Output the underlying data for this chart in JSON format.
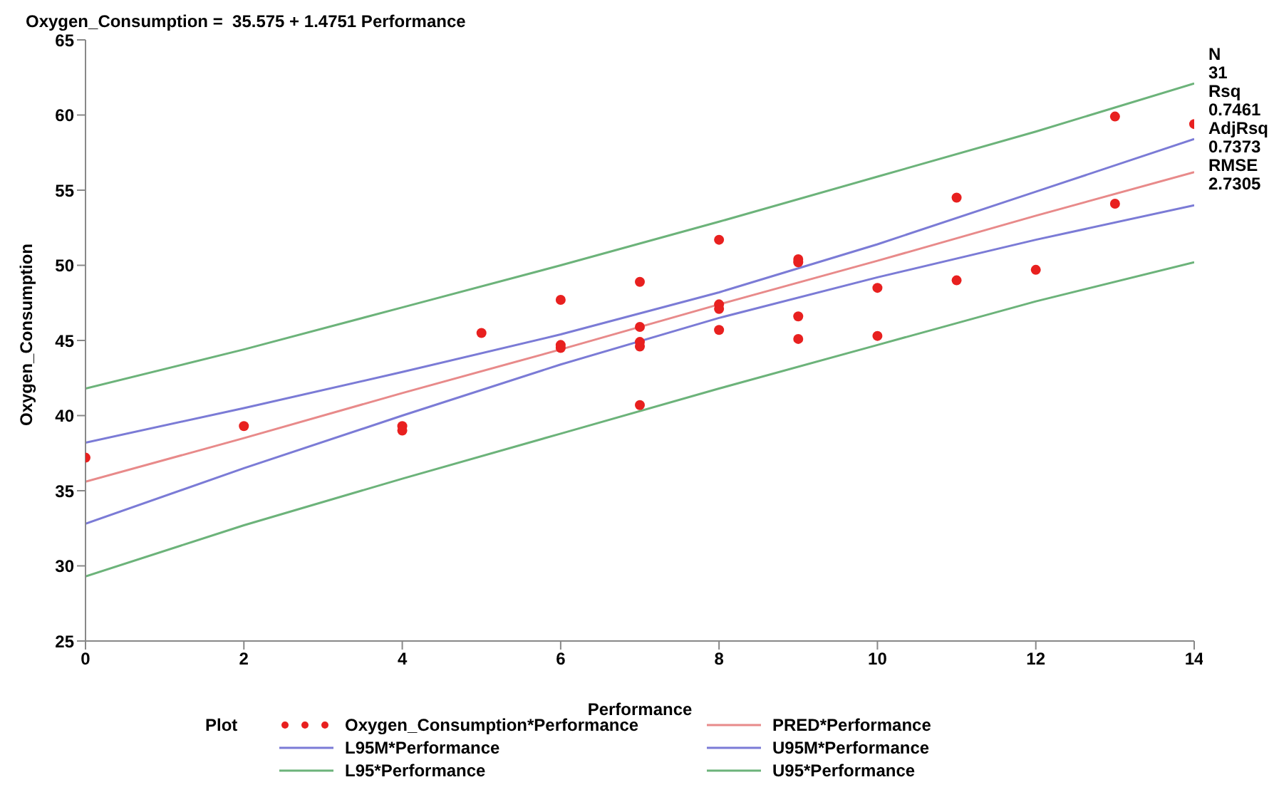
{
  "chart_data": {
    "type": "scatter",
    "title": "Oxygen_Consumption =  35.575 + 1.4751 Performance",
    "xlabel": "Performance",
    "ylabel": "Oxygen_Consumption",
    "legend_title": "Plot",
    "xlim": [
      0,
      14
    ],
    "xticks": [
      0,
      2,
      4,
      6,
      8,
      10,
      12,
      14
    ],
    "ylim": [
      25,
      65
    ],
    "yticks": [
      25,
      30,
      35,
      40,
      45,
      50,
      55,
      60,
      65
    ],
    "grid": false,
    "legend": "bottom",
    "annotations": [
      "N",
      "31",
      "Rsq",
      "0.7461",
      "AdjRsq",
      "0.7373",
      "RMSE",
      "2.7305"
    ],
    "series": [
      {
        "name": "Oxygen_Consumption*Performance",
        "marker": "circle",
        "color": "#e8201f",
        "x": [
          0,
          2,
          4,
          4,
          5,
          6,
          6,
          6,
          7,
          7,
          7,
          7,
          7,
          8,
          8,
          8,
          8,
          9,
          9,
          9,
          9,
          10,
          10,
          11,
          11,
          12,
          13,
          13,
          14
        ],
        "values": [
          37.2,
          39.3,
          39.3,
          39.0,
          45.5,
          47.7,
          44.7,
          44.5,
          48.9,
          45.9,
          44.9,
          44.6,
          40.7,
          51.7,
          47.4,
          47.1,
          45.7,
          50.4,
          50.2,
          46.6,
          45.1,
          48.5,
          45.3,
          54.5,
          49.0,
          49.7,
          59.9,
          54.1,
          59.4
        ]
      },
      {
        "name": "PRED*Performance",
        "type": "line",
        "color": "#e88a8a",
        "x": [
          0,
          2,
          4,
          6,
          8,
          10,
          12,
          14
        ],
        "values": [
          35.6,
          38.5,
          41.5,
          44.4,
          47.4,
          50.3,
          53.3,
          56.2
        ]
      },
      {
        "name": "L95M*Performance",
        "type": "line",
        "color": "#7b7bd6",
        "x": [
          0,
          2,
          4,
          6,
          8,
          10,
          12,
          14
        ],
        "values": [
          32.8,
          36.5,
          40.0,
          43.4,
          46.5,
          49.2,
          51.7,
          54.0
        ]
      },
      {
        "name": "U95M*Performance",
        "type": "line",
        "color": "#7b7bd6",
        "x": [
          0,
          2,
          4,
          6,
          8,
          10,
          12,
          14
        ],
        "values": [
          38.2,
          40.5,
          42.9,
          45.4,
          48.2,
          51.4,
          54.9,
          58.4
        ]
      },
      {
        "name": "L95*Performance",
        "type": "line",
        "color": "#6cb37a",
        "x": [
          0,
          2,
          4,
          6,
          8,
          10,
          12,
          14
        ],
        "values": [
          29.3,
          32.7,
          35.8,
          38.8,
          41.8,
          44.7,
          47.6,
          50.2
        ]
      },
      {
        "name": "U95*Performance",
        "type": "line",
        "color": "#6cb37a",
        "x": [
          0,
          2,
          4,
          6,
          8,
          10,
          12,
          14
        ],
        "values": [
          41.8,
          44.4,
          47.2,
          50.0,
          52.9,
          55.9,
          58.9,
          62.1
        ]
      }
    ]
  }
}
